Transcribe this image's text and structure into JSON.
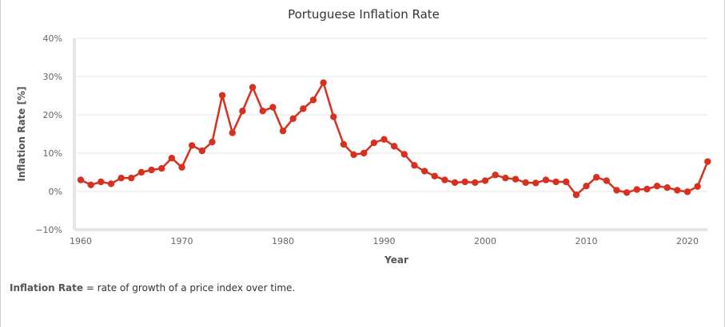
{
  "footnote": {
    "term": "Inflation Rate",
    "definition": "= rate of growth of a price index over time."
  },
  "chart_data": {
    "type": "line",
    "title": "Portuguese Inflation Rate",
    "xlabel": "Year",
    "ylabel": "Inflation Rate [%]",
    "xlim": [
      1959.5,
      1962.5
    ],
    "ylim": [
      -10,
      40
    ],
    "x_ticks": [
      1960,
      1970,
      1980,
      1990,
      2000,
      2010,
      2020
    ],
    "y_ticks": [
      -10,
      0,
      10,
      20,
      30,
      40
    ],
    "y_tick_labels": [
      "−10%",
      "0%",
      "10%",
      "20%",
      "30%",
      "40%"
    ],
    "grid": "horizontal",
    "line_color": "#d7301f",
    "series": [
      {
        "x": [
          1960,
          1961,
          1962,
          1963,
          1964,
          1965,
          1966,
          1967,
          1968,
          1969,
          1970,
          1971,
          1972,
          1973,
          1974,
          1975,
          1976,
          1977,
          1978,
          1979,
          1980,
          1981,
          1982,
          1983,
          1984,
          1985,
          1986,
          1987,
          1988,
          1989,
          1990,
          1991,
          1992,
          1993,
          1994,
          1995,
          1996,
          1997,
          1998,
          1999,
          2000,
          2001,
          2002,
          2003,
          2004,
          2005,
          2006,
          2007,
          2008,
          2009,
          2010,
          2011,
          2012,
          2013,
          2014,
          2015,
          2016,
          2017,
          2018,
          2019,
          2020,
          2021,
          2022
        ],
        "values": [
          3.0,
          1.7,
          2.5,
          2.0,
          3.5,
          3.5,
          5.0,
          5.6,
          6.0,
          8.7,
          6.3,
          12.0,
          10.6,
          12.9,
          25.1,
          15.3,
          21.0,
          27.2,
          21.0,
          22.0,
          15.8,
          19.0,
          21.6,
          23.9,
          28.4,
          19.5,
          12.3,
          9.6,
          10.0,
          12.7,
          13.6,
          11.8,
          9.7,
          6.8,
          5.3,
          4.0,
          3.0,
          2.3,
          2.5,
          2.3,
          2.8,
          4.3,
          3.5,
          3.2,
          2.3,
          2.2,
          3.0,
          2.5,
          2.5,
          -0.9,
          1.4,
          3.7,
          2.8,
          0.3,
          -0.3,
          0.5,
          0.6,
          1.4,
          1.0,
          0.3,
          -0.1,
          1.3,
          7.8
        ]
      }
    ]
  }
}
